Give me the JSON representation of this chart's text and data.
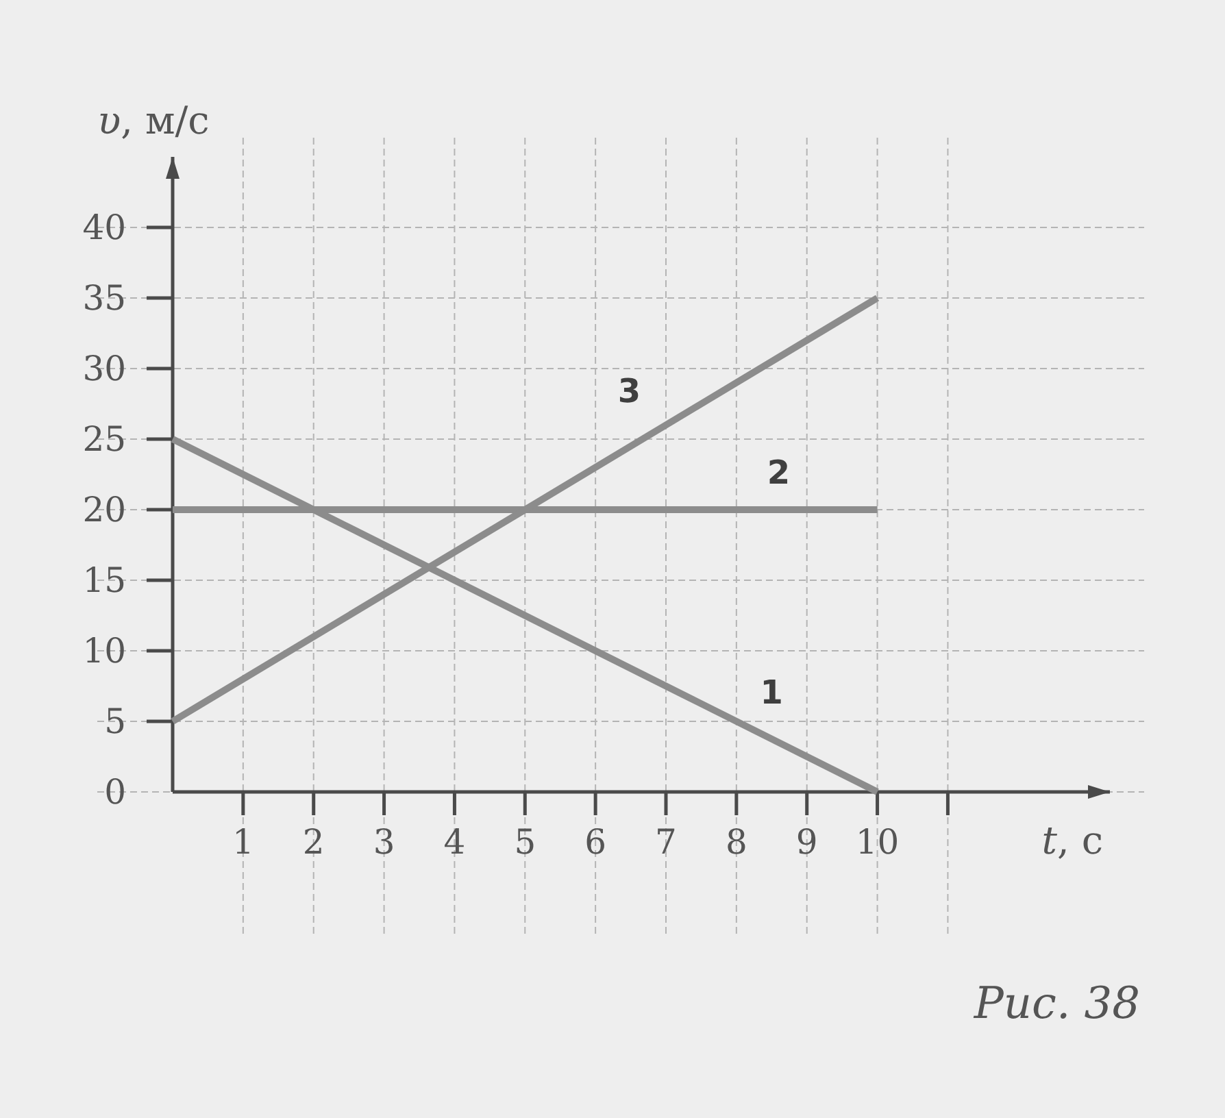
{
  "chart_data": {
    "type": "line",
    "xlabel": "t, с",
    "ylabel": "υ, м/с",
    "x": [
      0,
      10
    ],
    "series": [
      {
        "name": "1",
        "color": "#8c8c8c",
        "values": [
          25,
          0
        ]
      },
      {
        "name": "2",
        "color": "#8c8c8c",
        "values": [
          20,
          20
        ]
      },
      {
        "name": "3",
        "color": "#8c8c8c",
        "values": [
          5,
          35
        ]
      }
    ],
    "xlim": [
      0,
      13.3
    ],
    "ylim": [
      0,
      45
    ],
    "xticks": [
      1,
      2,
      3,
      4,
      5,
      6,
      7,
      8,
      9,
      10,
      {
        "value": 11,
        "label": null
      }
    ],
    "yticks": [
      0,
      5,
      10,
      15,
      20,
      25,
      30,
      35,
      40
    ],
    "grid": true,
    "line_style": "solid",
    "annotations": [
      "Рис. 38"
    ]
  }
}
